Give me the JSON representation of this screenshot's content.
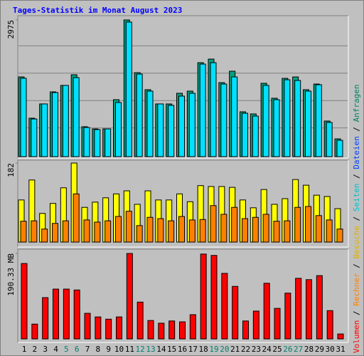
{
  "title": "Tages-Statistik im Monat August 2023",
  "separator": " / ",
  "legend": [
    {
      "name": "Volumen",
      "color": "#ff0000"
    },
    {
      "name": "Rechner",
      "color": "#ff8000"
    },
    {
      "name": "Besuche",
      "color": "#e0b000"
    },
    {
      "name": "Seiten",
      "color": "#00c0d0"
    },
    {
      "name": "Dateien",
      "color": "#0040ff"
    },
    {
      "name": "Anfragen",
      "color": "#008060"
    }
  ],
  "categories": [
    "1",
    "2",
    "3",
    "4",
    "5",
    "6",
    "7",
    "8",
    "9",
    "10",
    "11",
    "12",
    "13",
    "14",
    "15",
    "16",
    "17",
    "18",
    "19",
    "20",
    "21",
    "22",
    "23",
    "24",
    "25",
    "26",
    "27",
    "28",
    "29",
    "30",
    "31"
  ],
  "highlight": {
    "color": "#008070",
    "categories": [
      "5",
      "6",
      "12",
      "13",
      "19",
      "20",
      "26",
      "27"
    ]
  },
  "chart_data": [
    {
      "type": "bar",
      "ylim": [
        0,
        2975
      ],
      "yticks": [
        2975
      ],
      "grid": true,
      "series": [
        {
          "color": "#00a080",
          "values": [
            1735,
            837,
            1147,
            1410,
            1550,
            1782,
            651,
            604,
            604,
            1240,
            2975,
            1828,
            1457,
            1147,
            1147,
            1379,
            1426,
            2045,
            2123,
            1611,
            1859,
            976,
            930,
            1596,
            1271,
            1704,
            1735,
            1457,
            1580,
            775,
            387
          ]
        },
        {
          "color": "#00e0ff",
          "values": [
            1705,
            820,
            1147,
            1395,
            1550,
            1720,
            635,
            589,
            604,
            1178,
            2929,
            1797,
            1426,
            1147,
            1116,
            1317,
            1379,
            2014,
            2045,
            1580,
            1735,
            945,
            883,
            1550,
            1240,
            1673,
            1658,
            1426,
            1565,
            744,
            356
          ]
        }
      ]
    },
    {
      "type": "bar",
      "ylim": [
        0,
        182
      ],
      "yticks": [
        182
      ],
      "grid": false,
      "series": [
        {
          "color": "#ffff00",
          "values": [
            97,
            143,
            66,
            89,
            125,
            182,
            80,
            92,
            102,
            111,
            118,
            87,
            118,
            97,
            97,
            111,
            93,
            130,
            128,
            128,
            126,
            97,
            79,
            121,
            87,
            100,
            144,
            131,
            108,
            105,
            77
          ]
        },
        {
          "color": "#ff8000",
          "values": [
            48,
            49,
            30,
            43,
            49,
            111,
            51,
            46,
            49,
            59,
            71,
            38,
            57,
            54,
            49,
            59,
            51,
            52,
            84,
            64,
            80,
            54,
            57,
            64,
            48,
            49,
            80,
            82,
            61,
            51,
            30
          ]
        }
      ]
    },
    {
      "type": "bar",
      "ylim": [
        0,
        190.33
      ],
      "yticks": [
        {
          "value": 190.33,
          "label": "190.33 MB"
        }
      ],
      "grid": false,
      "series": [
        {
          "color": "#ff0000",
          "values": [
            168,
            33,
            92,
            111,
            111,
            109,
            57,
            49,
            44,
            49,
            190.33,
            82,
            41,
            35,
            40,
            38,
            54,
            189,
            186,
            146,
            117,
            40,
            62,
            124,
            68,
            102,
            135,
            132,
            141,
            63,
            11
          ]
        }
      ]
    }
  ]
}
